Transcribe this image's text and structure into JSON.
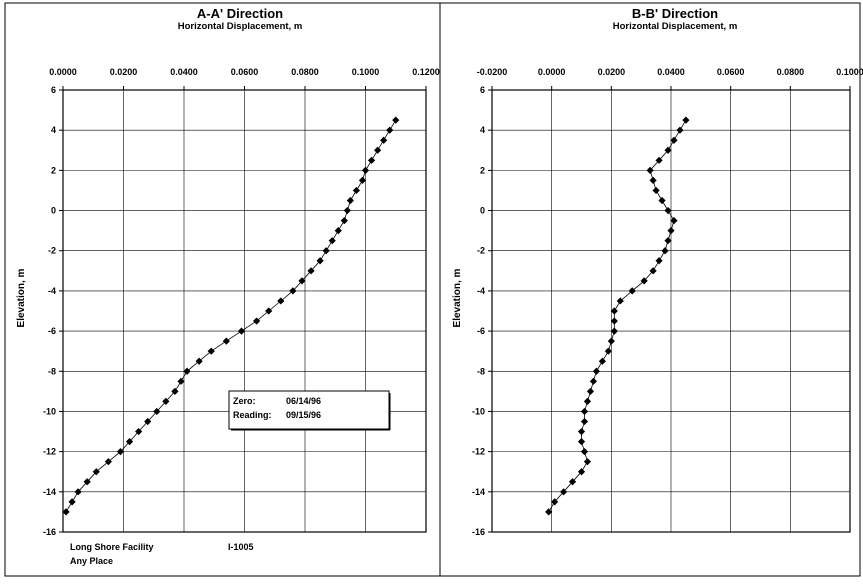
{
  "chart_data": [
    {
      "type": "line",
      "title": "A-A' Direction",
      "subtitle": "Horizontal Displacement, m",
      "xlabel": "Horizontal Displacement, m",
      "ylabel": "Elevation, m",
      "xlim": [
        0.0,
        0.12
      ],
      "ylim": [
        -16,
        6
      ],
      "x_ticks": [
        "0.0000",
        "0.0200",
        "0.0400",
        "0.0600",
        "0.0800",
        "0.1000",
        "0.1200"
      ],
      "y_ticks": [
        "6",
        "4",
        "2",
        "0",
        "-2",
        "-4",
        "-6",
        "-8",
        "-10",
        "-12",
        "-14",
        "-16"
      ],
      "grid": true,
      "legend": {
        "zero_label": "Zero:",
        "zero_date": "06/14/96",
        "reading_label": "Reading:",
        "reading_date": "09/15/96"
      },
      "footer": {
        "site": "Long Shore Facility",
        "id": "I-1005",
        "location": "Any Place"
      },
      "series": [
        {
          "marker": "diamond",
          "points": [
            [
              0.11,
              4.5
            ],
            [
              0.108,
              4.0
            ],
            [
              0.106,
              3.5
            ],
            [
              0.104,
              3.0
            ],
            [
              0.102,
              2.5
            ],
            [
              0.1,
              2.0
            ],
            [
              0.099,
              1.5
            ],
            [
              0.097,
              1.0
            ],
            [
              0.095,
              0.5
            ],
            [
              0.094,
              0.0
            ],
            [
              0.093,
              -0.5
            ],
            [
              0.091,
              -1.0
            ],
            [
              0.089,
              -1.5
            ],
            [
              0.087,
              -2.0
            ],
            [
              0.085,
              -2.5
            ],
            [
              0.082,
              -3.0
            ],
            [
              0.079,
              -3.5
            ],
            [
              0.076,
              -4.0
            ],
            [
              0.072,
              -4.5
            ],
            [
              0.068,
              -5.0
            ],
            [
              0.064,
              -5.5
            ],
            [
              0.059,
              -6.0
            ],
            [
              0.054,
              -6.5
            ],
            [
              0.049,
              -7.0
            ],
            [
              0.045,
              -7.5
            ],
            [
              0.041,
              -8.0
            ],
            [
              0.039,
              -8.5
            ],
            [
              0.037,
              -9.0
            ],
            [
              0.034,
              -9.5
            ],
            [
              0.031,
              -10.0
            ],
            [
              0.028,
              -10.5
            ],
            [
              0.025,
              -11.0
            ],
            [
              0.022,
              -11.5
            ],
            [
              0.019,
              -12.0
            ],
            [
              0.015,
              -12.5
            ],
            [
              0.011,
              -13.0
            ],
            [
              0.008,
              -13.5
            ],
            [
              0.005,
              -14.0
            ],
            [
              0.003,
              -14.5
            ],
            [
              0.001,
              -15.0
            ]
          ]
        }
      ]
    },
    {
      "type": "line",
      "title": "B-B' Direction",
      "subtitle": "Horizontal Displacement, m",
      "xlabel": "Horizontal Displacement, m",
      "ylabel": "Elevation, m",
      "xlim": [
        -0.02,
        0.1
      ],
      "ylim": [
        -16,
        6
      ],
      "x_ticks": [
        "-0.0200",
        "0.0000",
        "0.0200",
        "0.0400",
        "0.0600",
        "0.0800",
        "0.1000"
      ],
      "y_ticks": [
        "6",
        "4",
        "2",
        "0",
        "-2",
        "-4",
        "-6",
        "-8",
        "-10",
        "-12",
        "-14",
        "-16"
      ],
      "grid": true,
      "series": [
        {
          "marker": "diamond",
          "points": [
            [
              0.045,
              4.5
            ],
            [
              0.043,
              4.0
            ],
            [
              0.041,
              3.5
            ],
            [
              0.039,
              3.0
            ],
            [
              0.036,
              2.5
            ],
            [
              0.033,
              2.0
            ],
            [
              0.034,
              1.5
            ],
            [
              0.035,
              1.0
            ],
            [
              0.037,
              0.5
            ],
            [
              0.039,
              0.0
            ],
            [
              0.041,
              -0.5
            ],
            [
              0.04,
              -1.0
            ],
            [
              0.039,
              -1.5
            ],
            [
              0.038,
              -2.0
            ],
            [
              0.036,
              -2.5
            ],
            [
              0.034,
              -3.0
            ],
            [
              0.031,
              -3.5
            ],
            [
              0.027,
              -4.0
            ],
            [
              0.023,
              -4.5
            ],
            [
              0.021,
              -5.0
            ],
            [
              0.021,
              -5.5
            ],
            [
              0.021,
              -6.0
            ],
            [
              0.02,
              -6.5
            ],
            [
              0.019,
              -7.0
            ],
            [
              0.017,
              -7.5
            ],
            [
              0.015,
              -8.0
            ],
            [
              0.014,
              -8.5
            ],
            [
              0.013,
              -9.0
            ],
            [
              0.012,
              -9.5
            ],
            [
              0.011,
              -10.0
            ],
            [
              0.011,
              -10.5
            ],
            [
              0.01,
              -11.0
            ],
            [
              0.01,
              -11.5
            ],
            [
              0.011,
              -12.0
            ],
            [
              0.012,
              -12.5
            ],
            [
              0.01,
              -13.0
            ],
            [
              0.007,
              -13.5
            ],
            [
              0.004,
              -14.0
            ],
            [
              0.001,
              -14.5
            ],
            [
              -0.001,
              -15.0
            ]
          ]
        }
      ]
    }
  ]
}
